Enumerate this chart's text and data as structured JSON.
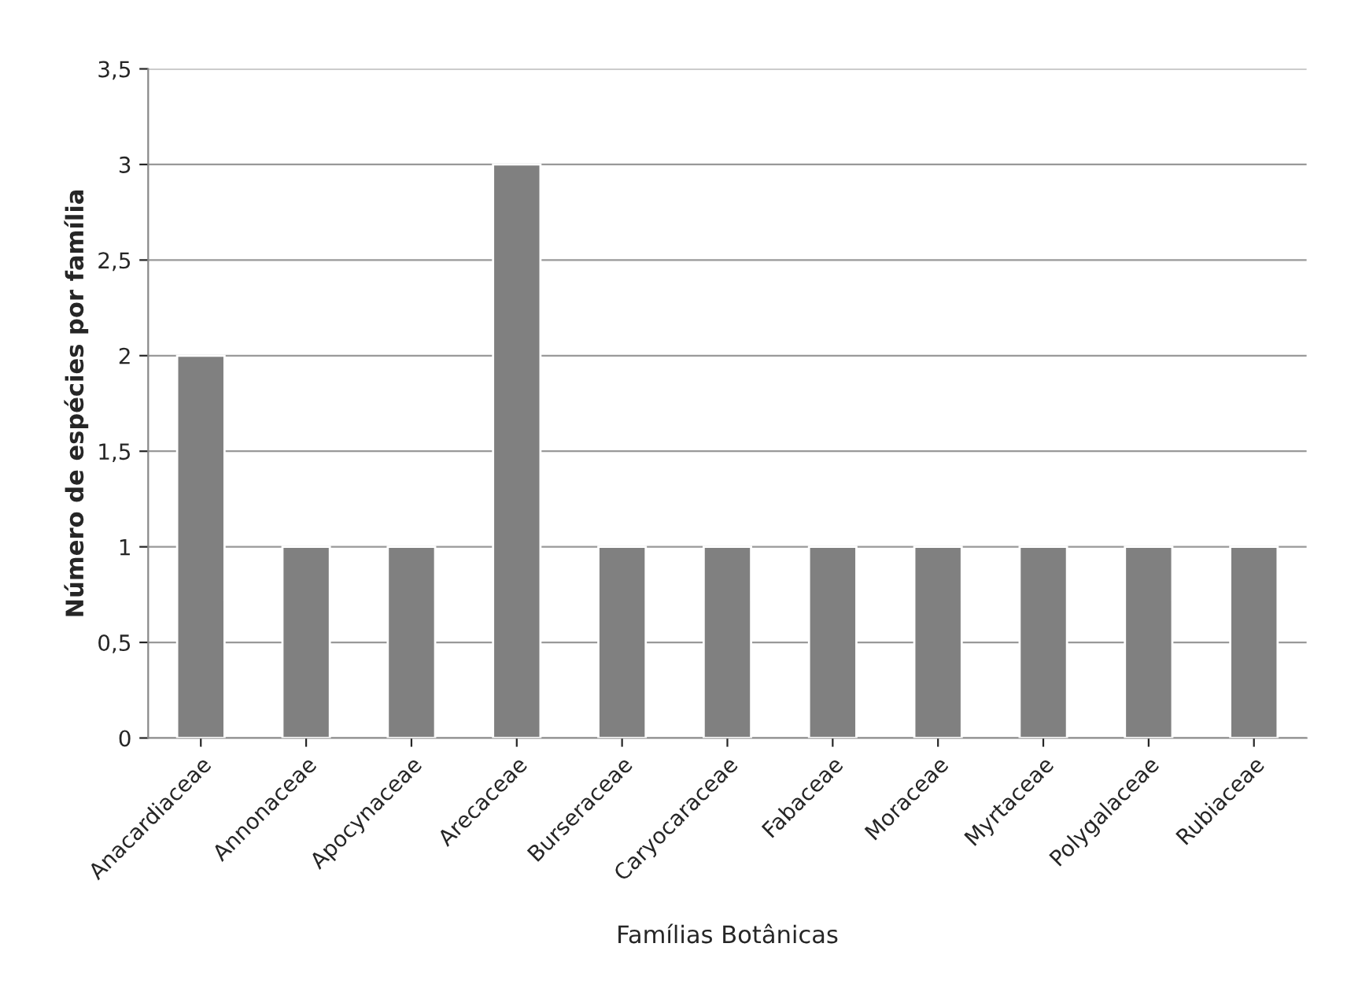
{
  "chart_data": {
    "type": "bar",
    "xlabel": "Famílias Botânicas",
    "ylabel": "Número de espécies por família",
    "categories": [
      "Anacardiaceae",
      "Annonaceae",
      "Apocynaceae",
      "Arecaceae",
      "Burseraceae",
      "Caryocaraceae",
      "Fabaceae",
      "Moraceae",
      "Myrtaceae",
      "Polygalaceae",
      "Rubiaceae"
    ],
    "values": [
      2,
      1,
      1,
      3,
      1,
      1,
      1,
      1,
      1,
      1,
      1
    ],
    "color": "#808080",
    "ylim": [
      0,
      3.5
    ],
    "yticks": [
      0,
      {
        "value": 0.5,
        "label": "0,5"
      },
      1,
      {
        "value": 1.5,
        "label": "1,5"
      },
      2,
      {
        "value": 2.5,
        "label": "2,5"
      },
      3,
      {
        "value": 3.5,
        "label": "3,5"
      }
    ],
    "grid": "y",
    "legend": false
  }
}
